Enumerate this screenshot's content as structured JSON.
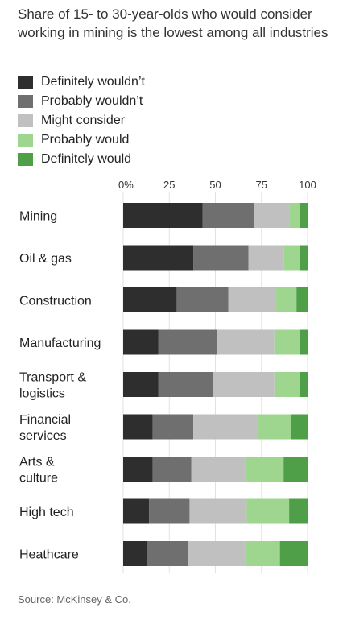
{
  "title": "Share of 15- to 30-year-olds who would consider working in mining is the lowest among all industries",
  "source": "Source: McKinsey & Co.",
  "chart_data": {
    "type": "bar",
    "orientation": "horizontal",
    "stacked": true,
    "title": "Share of 15- to 30-year-olds who would consider working in mining is the lowest among all industries",
    "xlim": [
      0,
      100
    ],
    "x_ticks": [
      "0%",
      "25",
      "50",
      "75",
      "100"
    ],
    "grid": true,
    "legend_position": "top-left",
    "categories": [
      "Mining",
      "Oil & gas",
      "Construction",
      "Manufacturing",
      "Transport & logistics",
      "Financial services",
      "Arts & culture",
      "High tech",
      "Heathcare"
    ],
    "category_lines": [
      [
        "Mining"
      ],
      [
        "Oil & gas"
      ],
      [
        "Construction"
      ],
      [
        "Manufacturing"
      ],
      [
        "Transport &",
        "logistics"
      ],
      [
        "Financial",
        "services"
      ],
      [
        "Arts &",
        "culture"
      ],
      [
        "High tech"
      ],
      [
        "Heathcare"
      ]
    ],
    "series": [
      {
        "name": "Definitely wouldn’t",
        "color": "#2e2e2e",
        "values": [
          43,
          38,
          29,
          19,
          19,
          16,
          16,
          14,
          13
        ]
      },
      {
        "name": "Probably wouldn’t",
        "color": "#6f6f6f",
        "values": [
          28,
          30,
          28,
          32,
          30,
          22,
          21,
          22,
          22
        ]
      },
      {
        "name": "Might consider",
        "color": "#c0c0c0",
        "values": [
          19,
          19,
          26,
          31,
          33,
          35,
          29,
          31,
          31
        ]
      },
      {
        "name": "Probably would",
        "color": "#9fd68f",
        "values": [
          6,
          9,
          11,
          14,
          14,
          18,
          21,
          23,
          19
        ]
      },
      {
        "name": "Definitely would",
        "color": "#4e9f48",
        "values": [
          4,
          4,
          6,
          4,
          4,
          9,
          13,
          10,
          15
        ]
      }
    ]
  }
}
